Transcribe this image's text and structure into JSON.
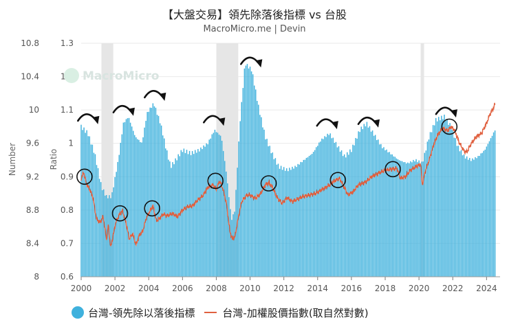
{
  "header": {
    "title": "【大盤交易】領先除落後指標 vs 台股",
    "subtitle": "MacroMicro.me | Devin"
  },
  "watermark": "MacroMicro",
  "colors": {
    "bars": "#3fb1dd",
    "line": "#e0603f",
    "recession": "#e6e6e6",
    "grid": "#e9e9e9",
    "marker": "#111111"
  },
  "chart_data": {
    "type": "bar",
    "x_ticks": [
      "2000",
      "2002",
      "2004",
      "2006",
      "2008",
      "2010",
      "2012",
      "2014",
      "2016",
      "2018",
      "2020",
      "2022",
      "2024"
    ],
    "left_axis": {
      "label": "Number",
      "ticks": [
        "10.8",
        "10.4",
        "10",
        "9.6",
        "9.2",
        "8.8",
        "8.4",
        "8"
      ],
      "range": [
        8,
        10.8
      ]
    },
    "right_axis": {
      "label": "Ratio",
      "ticks": [
        "1.3",
        "1.2",
        "1.1",
        "1",
        "0.9",
        "0.8",
        "0.7",
        "0.6"
      ],
      "range": [
        0.6,
        1.3
      ]
    },
    "recession_bands": [
      [
        2001.2,
        2001.9
      ],
      [
        2008.0,
        2009.3
      ],
      [
        2020.1,
        2020.3
      ]
    ],
    "series": [
      {
        "name": "台灣-領先除以落後指標",
        "kind": "bar",
        "axis": "right",
        "points": [
          [
            2000.0,
            1.05
          ],
          [
            2000.4,
            1.03
          ],
          [
            2000.8,
            0.97
          ],
          [
            2001.2,
            0.87
          ],
          [
            2001.5,
            0.84
          ],
          [
            2001.8,
            0.84
          ],
          [
            2002.2,
            0.95
          ],
          [
            2002.5,
            1.06
          ],
          [
            2002.8,
            1.08
          ],
          [
            2003.2,
            1.02
          ],
          [
            2003.6,
            1.0
          ],
          [
            2003.9,
            1.09
          ],
          [
            2004.3,
            1.12
          ],
          [
            2004.7,
            1.06
          ],
          [
            2005.0,
            0.99
          ],
          [
            2005.3,
            0.93
          ],
          [
            2005.6,
            0.95
          ],
          [
            2006.0,
            0.98
          ],
          [
            2006.5,
            0.97
          ],
          [
            2007.0,
            0.98
          ],
          [
            2007.5,
            1.0
          ],
          [
            2007.9,
            1.04
          ],
          [
            2008.3,
            1.02
          ],
          [
            2008.6,
            0.91
          ],
          [
            2008.9,
            0.77
          ],
          [
            2009.1,
            0.8
          ],
          [
            2009.4,
            1.06
          ],
          [
            2009.7,
            1.24
          ],
          [
            2010.1,
            1.22
          ],
          [
            2010.5,
            1.11
          ],
          [
            2010.9,
            1.02
          ],
          [
            2011.3,
            0.97
          ],
          [
            2011.7,
            0.93
          ],
          [
            2012.2,
            0.92
          ],
          [
            2012.7,
            0.93
          ],
          [
            2013.2,
            0.95
          ],
          [
            2013.7,
            0.97
          ],
          [
            2014.2,
            1.01
          ],
          [
            2014.7,
            1.03
          ],
          [
            2015.2,
            0.99
          ],
          [
            2015.6,
            0.96
          ],
          [
            2016.0,
            0.98
          ],
          [
            2016.5,
            1.04
          ],
          [
            2016.9,
            1.06
          ],
          [
            2017.3,
            1.03
          ],
          [
            2017.8,
            0.99
          ],
          [
            2018.3,
            0.97
          ],
          [
            2018.8,
            0.95
          ],
          [
            2019.3,
            0.94
          ],
          [
            2019.8,
            0.95
          ],
          [
            2020.2,
            0.94
          ],
          [
            2020.6,
            1.02
          ],
          [
            2021.0,
            1.07
          ],
          [
            2021.5,
            1.08
          ],
          [
            2021.9,
            1.05
          ],
          [
            2022.3,
            0.99
          ],
          [
            2022.7,
            0.96
          ],
          [
            2023.1,
            0.95
          ],
          [
            2023.5,
            0.96
          ],
          [
            2023.9,
            0.98
          ],
          [
            2024.3,
            1.02
          ],
          [
            2024.5,
            1.04
          ]
        ]
      },
      {
        "name": "台灣-加權股價指數(取自然對數)",
        "kind": "line",
        "axis": "left",
        "points": [
          [
            2000.0,
            9.18
          ],
          [
            2000.15,
            9.25
          ],
          [
            2000.3,
            9.12
          ],
          [
            2000.5,
            9.05
          ],
          [
            2000.7,
            8.95
          ],
          [
            2000.9,
            8.7
          ],
          [
            2001.1,
            8.65
          ],
          [
            2001.3,
            8.72
          ],
          [
            2001.5,
            8.45
          ],
          [
            2001.6,
            8.62
          ],
          [
            2001.75,
            8.35
          ],
          [
            2001.9,
            8.5
          ],
          [
            2002.05,
            8.65
          ],
          [
            2002.25,
            8.74
          ],
          [
            2002.45,
            8.79
          ],
          [
            2002.65,
            8.65
          ],
          [
            2002.85,
            8.45
          ],
          [
            2003.05,
            8.52
          ],
          [
            2003.25,
            8.38
          ],
          [
            2003.45,
            8.5
          ],
          [
            2003.65,
            8.55
          ],
          [
            2003.85,
            8.7
          ],
          [
            2004.05,
            8.78
          ],
          [
            2004.25,
            8.85
          ],
          [
            2004.45,
            8.67
          ],
          [
            2004.65,
            8.7
          ],
          [
            2004.85,
            8.75
          ],
          [
            2005.1,
            8.73
          ],
          [
            2005.4,
            8.76
          ],
          [
            2005.7,
            8.72
          ],
          [
            2006.0,
            8.8
          ],
          [
            2006.3,
            8.84
          ],
          [
            2006.6,
            8.85
          ],
          [
            2006.9,
            8.92
          ],
          [
            2007.2,
            8.97
          ],
          [
            2007.5,
            9.07
          ],
          [
            2007.8,
            9.1
          ],
          [
            2008.0,
            9.05
          ],
          [
            2008.2,
            9.15
          ],
          [
            2008.4,
            9.05
          ],
          [
            2008.6,
            8.88
          ],
          [
            2008.8,
            8.55
          ],
          [
            2008.95,
            8.45
          ],
          [
            2009.1,
            8.48
          ],
          [
            2009.3,
            8.7
          ],
          [
            2009.5,
            8.9
          ],
          [
            2009.8,
            8.98
          ],
          [
            2010.0,
            8.98
          ],
          [
            2010.3,
            8.94
          ],
          [
            2010.6,
            8.99
          ],
          [
            2010.9,
            9.1
          ],
          [
            2011.1,
            9.13
          ],
          [
            2011.3,
            9.08
          ],
          [
            2011.6,
            8.95
          ],
          [
            2011.9,
            8.88
          ],
          [
            2012.2,
            8.95
          ],
          [
            2012.5,
            8.9
          ],
          [
            2012.8,
            8.93
          ],
          [
            2013.1,
            8.96
          ],
          [
            2013.5,
            8.98
          ],
          [
            2013.9,
            9.0
          ],
          [
            2014.3,
            9.05
          ],
          [
            2014.7,
            9.1
          ],
          [
            2015.0,
            9.15
          ],
          [
            2015.3,
            9.18
          ],
          [
            2015.5,
            9.1
          ],
          [
            2015.8,
            8.98
          ],
          [
            2016.1,
            9.02
          ],
          [
            2016.4,
            9.1
          ],
          [
            2016.8,
            9.13
          ],
          [
            2017.2,
            9.2
          ],
          [
            2017.6,
            9.24
          ],
          [
            2018.0,
            9.28
          ],
          [
            2018.4,
            9.29
          ],
          [
            2018.7,
            9.3
          ],
          [
            2018.9,
            9.18
          ],
          [
            2019.2,
            9.2
          ],
          [
            2019.5,
            9.28
          ],
          [
            2019.9,
            9.33
          ],
          [
            2020.1,
            9.35
          ],
          [
            2020.2,
            9.1
          ],
          [
            2020.35,
            9.25
          ],
          [
            2020.6,
            9.4
          ],
          [
            2020.9,
            9.6
          ],
          [
            2021.1,
            9.7
          ],
          [
            2021.4,
            9.78
          ],
          [
            2021.7,
            9.75
          ],
          [
            2021.9,
            9.8
          ],
          [
            2022.1,
            9.76
          ],
          [
            2022.4,
            9.6
          ],
          [
            2022.7,
            9.5
          ],
          [
            2022.85,
            9.5
          ],
          [
            2023.1,
            9.6
          ],
          [
            2023.4,
            9.68
          ],
          [
            2023.7,
            9.72
          ],
          [
            2024.0,
            9.84
          ],
          [
            2024.2,
            9.95
          ],
          [
            2024.4,
            10.02
          ],
          [
            2024.5,
            10.07
          ]
        ]
      }
    ],
    "markers": {
      "circles": [
        [
          2000.2,
          9.2
        ],
        [
          2002.3,
          8.76
        ],
        [
          2004.2,
          8.82
        ],
        [
          2007.95,
          9.15
        ],
        [
          2011.1,
          9.12
        ],
        [
          2015.2,
          9.16
        ],
        [
          2018.45,
          9.29
        ],
        [
          2021.8,
          9.8
        ]
      ],
      "arrows": [
        [
          2000.3,
          1.08
        ],
        [
          2002.4,
          1.105
        ],
        [
          2004.25,
          1.15
        ],
        [
          2007.75,
          1.075
        ],
        [
          2009.95,
          1.25
        ],
        [
          2014.45,
          1.065
        ],
        [
          2016.9,
          1.07
        ],
        [
          2021.5,
          1.1
        ]
      ]
    }
  },
  "legend": {
    "bar_label": "台灣-領先除以落後指標",
    "line_label": "台灣-加權股價指數(取自然對數)"
  }
}
